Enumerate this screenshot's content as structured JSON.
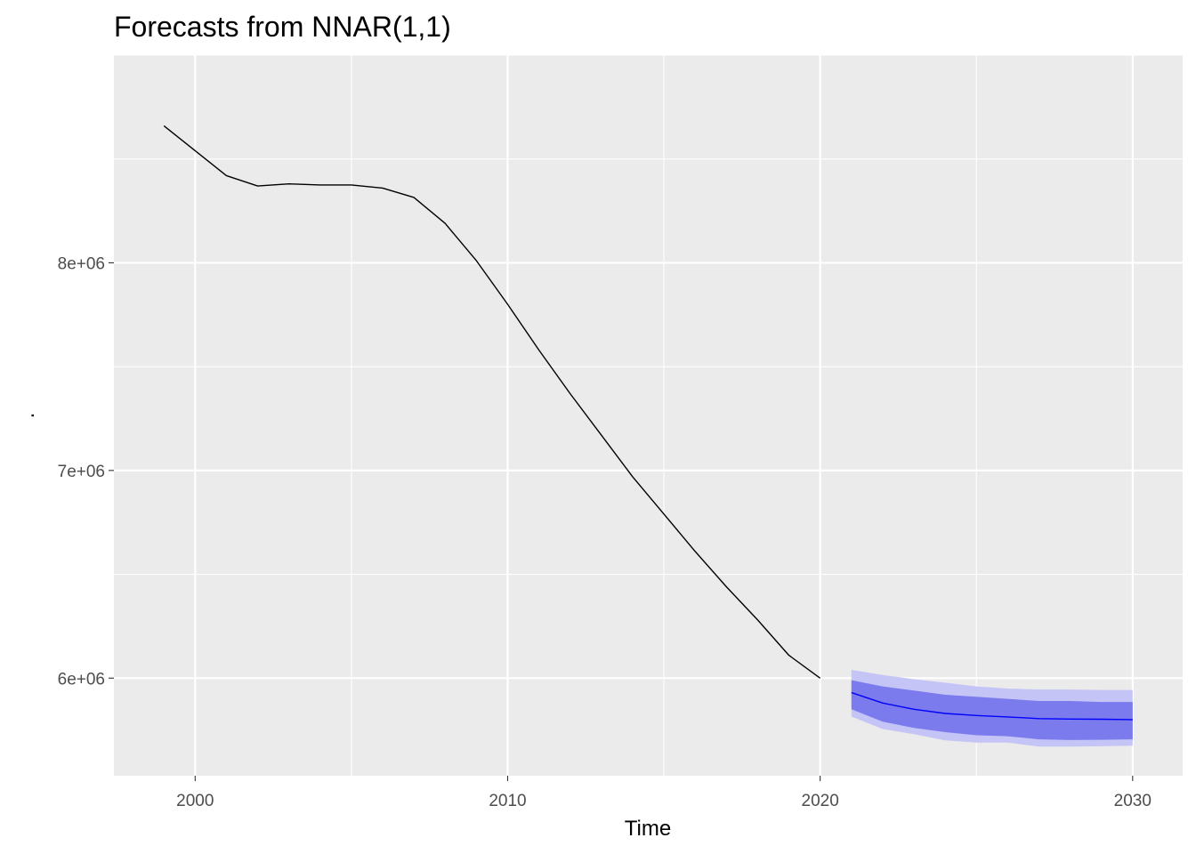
{
  "chart_data": {
    "type": "line",
    "title": "Forecasts from NNAR(1,1)",
    "xlabel": "Time",
    "ylabel": ".",
    "xlim": [
      1997.4,
      2031.6
    ],
    "ylim": [
      5530000,
      9000000
    ],
    "x_ticks": [
      2000,
      2010,
      2020,
      2030
    ],
    "x_tick_labels": [
      "2000",
      "2010",
      "2020",
      "2030"
    ],
    "y_ticks": [
      6000000,
      7000000,
      8000000
    ],
    "y_tick_labels": [
      "6e+06",
      "7e+06",
      "8e+06"
    ],
    "grid": true,
    "legend": "none",
    "colors": {
      "panel": "#ebebeb",
      "grid": "#ffffff",
      "history": "#000000",
      "forecast": "#0000ff",
      "band80": "#7b7bee",
      "band95": "#c4c4f6"
    },
    "series": [
      {
        "x": [
          1999,
          2000,
          2001,
          2002,
          2003,
          2004,
          2005,
          2006,
          2007,
          2008,
          2009,
          2010,
          2011,
          2012,
          2013,
          2014,
          2015,
          2016,
          2017,
          2018,
          2019,
          2020
        ],
        "values": [
          8660000,
          8540000,
          8420000,
          8370000,
          8380000,
          8375000,
          8375000,
          8360000,
          8315000,
          8190000,
          8010000,
          7800000,
          7580000,
          7370000,
          7170000,
          6970000,
          6790000,
          6610000,
          6440000,
          6280000,
          6110000,
          6000000
        ]
      },
      {
        "x": [
          2021,
          2022,
          2023,
          2024,
          2025,
          2026,
          2027,
          2028,
          2029,
          2030
        ],
        "values": [
          5930000,
          5880000,
          5850000,
          5830000,
          5820000,
          5813000,
          5805000,
          5803000,
          5802000,
          5800000
        ],
        "lo80": [
          5850000,
          5790000,
          5760000,
          5740000,
          5725000,
          5720000,
          5705000,
          5702000,
          5703000,
          5705000
        ],
        "hi80": [
          5990000,
          5960000,
          5940000,
          5920000,
          5910000,
          5900000,
          5890000,
          5890000,
          5885000,
          5885000
        ],
        "lo95": [
          5815000,
          5755000,
          5730000,
          5700000,
          5690000,
          5690000,
          5670000,
          5670000,
          5672000,
          5675000
        ],
        "hi95": [
          6040000,
          6015000,
          5995000,
          5978000,
          5960000,
          5950000,
          5945000,
          5945000,
          5943000,
          5943000
        ]
      }
    ]
  }
}
